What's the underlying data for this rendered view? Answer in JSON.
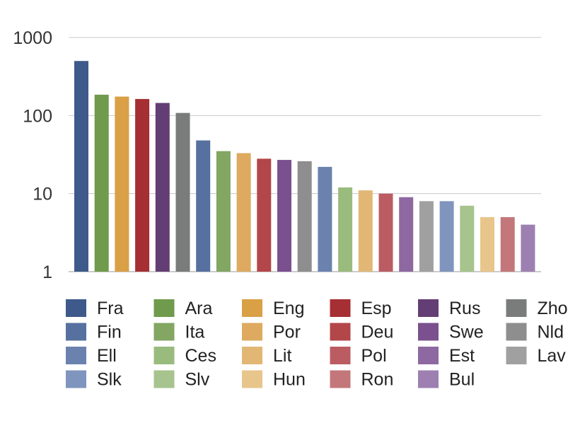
{
  "chart_data": {
    "type": "bar",
    "title": "",
    "xlabel": "",
    "ylabel": "",
    "yscale": "log",
    "ylim": [
      1,
      1000
    ],
    "y_ticks": [
      "1",
      "10",
      "100",
      "1000"
    ],
    "grid": true,
    "legend_position": "bottom",
    "categories": [
      "Fra",
      "Ara",
      "Eng",
      "Esp",
      "Rus",
      "Zho",
      "Fin",
      "Ita",
      "Por",
      "Deu",
      "Swe",
      "Nld",
      "Ell",
      "Ces",
      "Lit",
      "Pol",
      "Est",
      "Lav",
      "Slk",
      "Slv",
      "Hun",
      "Ron",
      "Bul"
    ],
    "values": [
      500,
      185,
      175,
      163,
      145,
      108,
      48,
      35,
      33,
      28,
      27,
      26,
      22,
      12,
      11,
      10,
      9,
      8,
      8,
      7,
      5,
      5,
      4
    ],
    "colors": [
      "#3e5a8a",
      "#709a4c",
      "#d9a046",
      "#a52f33",
      "#633e74",
      "#7a7b7b",
      "#5670a0",
      "#83a663",
      "#ddaa60",
      "#b34649",
      "#7a508e",
      "#8e8e8e",
      "#6b82ae",
      "#99bb7e",
      "#e2b775",
      "#bb5c62",
      "#8e68a1",
      "#a0a0a0",
      "#7f95bd",
      "#a7c38e",
      "#e8c58a",
      "#c4777a",
      "#9d80b1"
    ],
    "legend": [
      [
        "Fra",
        "Fin",
        "Ell",
        "Slk"
      ],
      [
        "Ara",
        "Ita",
        "Ces",
        "Slv"
      ],
      [
        "Eng",
        "Por",
        "Lit",
        "Hun"
      ],
      [
        "Esp",
        "Deu",
        "Pol",
        "Ron"
      ],
      [
        "Rus",
        "Swe",
        "Est",
        "Bul"
      ],
      [
        "Zho",
        "Nld",
        "Lav"
      ]
    ]
  }
}
